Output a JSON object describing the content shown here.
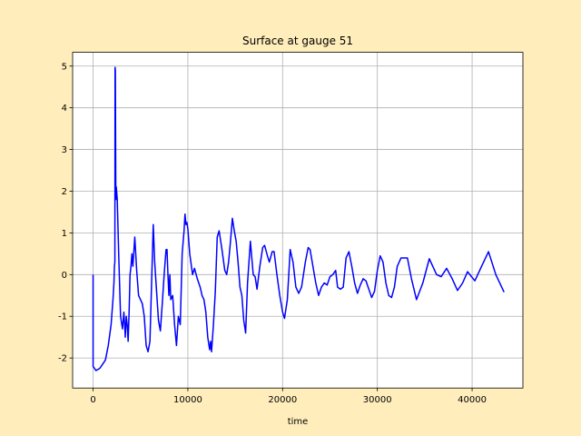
{
  "chart_data": {
    "type": "line",
    "title": "Surface at gauge 51",
    "xlabel": "time",
    "x": [
      0,
      0,
      300,
      700,
      1000,
      1300,
      1600,
      1900,
      2100,
      2200,
      2250,
      2300,
      2320,
      2350,
      2400,
      2450,
      2550,
      2700,
      2900,
      3100,
      3250,
      3400,
      3500,
      3600,
      3700,
      3800,
      3900,
      4000,
      4100,
      4200,
      4400,
      4600,
      4800,
      5000,
      5200,
      5400,
      5600,
      5800,
      6000,
      6200,
      6350,
      6500,
      6700,
      6900,
      7100,
      7300,
      7500,
      7700,
      7800,
      7900,
      8000,
      8100,
      8200,
      8400,
      8600,
      8800,
      9000,
      9200,
      9400,
      9600,
      9700,
      9800,
      9900,
      10000,
      10200,
      10500,
      10700,
      11000,
      11300,
      11500,
      11700,
      11900,
      12100,
      12300,
      12400,
      12500,
      12700,
      12900,
      13100,
      13300,
      13600,
      13900,
      14100,
      14300,
      14500,
      14700,
      14900,
      15100,
      15300,
      15500,
      15700,
      15900,
      16100,
      16300,
      16600,
      16900,
      17100,
      17300,
      17600,
      17900,
      18100,
      18400,
      18600,
      18900,
      19100,
      19400,
      19700,
      20000,
      20200,
      20500,
      20800,
      21100,
      21400,
      21700,
      22000,
      22400,
      22700,
      22900,
      23200,
      23500,
      23800,
      24100,
      24400,
      24700,
      25000,
      25300,
      25600,
      25800,
      26100,
      26400,
      26700,
      27000,
      27300,
      27600,
      27900,
      28200,
      28500,
      28800,
      29100,
      29400,
      29700,
      30000,
      30300,
      30600,
      30900,
      31200,
      31500,
      31800,
      32100,
      32500,
      33170,
      33600,
      34130,
      34800,
      35480,
      36250,
      36730,
      37310,
      37900,
      38460,
      39000,
      39520,
      40290,
      41000,
      41730,
      42500,
      43370
    ],
    "series": [
      {
        "name": "surface",
        "color": "#0000ff",
        "values": [
          0,
          -2.2,
          -2.3,
          -2.25,
          -2.15,
          -2.05,
          -1.7,
          -1.2,
          -0.6,
          -0.2,
          0.2,
          0.3,
          4.97,
          4.9,
          1.8,
          2.1,
          1.8,
          0.5,
          -1.0,
          -1.3,
          -0.9,
          -1.5,
          -1.0,
          -1.2,
          -1.6,
          -0.9,
          0.0,
          0.2,
          0.5,
          0.2,
          0.9,
          0.1,
          -0.5,
          -0.6,
          -0.7,
          -1.0,
          -1.7,
          -1.85,
          -1.6,
          0.0,
          1.2,
          0.3,
          -0.4,
          -1.1,
          -1.35,
          -0.7,
          0.0,
          0.6,
          0.6,
          0.0,
          -0.5,
          0.0,
          -0.6,
          -0.5,
          -1.2,
          -1.7,
          -1.0,
          -1.2,
          0.5,
          1.05,
          1.45,
          1.2,
          1.25,
          1.1,
          0.5,
          0.0,
          0.15,
          -0.1,
          -0.3,
          -0.5,
          -0.6,
          -0.9,
          -1.5,
          -1.8,
          -1.6,
          -1.85,
          -1.2,
          -0.4,
          0.9,
          1.05,
          0.6,
          0.1,
          0.0,
          0.3,
          0.8,
          1.35,
          1.05,
          0.8,
          0.3,
          -0.3,
          -0.5,
          -1.1,
          -1.4,
          -0.2,
          0.8,
          0.0,
          -0.05,
          -0.35,
          0.2,
          0.65,
          0.7,
          0.45,
          0.3,
          0.55,
          0.55,
          0.0,
          -0.5,
          -0.9,
          -1.05,
          -0.6,
          0.6,
          0.3,
          -0.3,
          -0.45,
          -0.3,
          0.3,
          0.65,
          0.6,
          0.2,
          -0.2,
          -0.5,
          -0.3,
          -0.2,
          -0.25,
          -0.05,
          0.0,
          0.1,
          -0.3,
          -0.35,
          -0.3,
          0.4,
          0.55,
          0.2,
          -0.2,
          -0.45,
          -0.25,
          -0.1,
          -0.15,
          -0.35,
          -0.55,
          -0.4,
          0.1,
          0.45,
          0.3,
          -0.2,
          -0.5,
          -0.55,
          -0.3,
          0.2,
          0.4,
          0.4,
          -0.1,
          -0.6,
          -0.2,
          0.38,
          0.0,
          -0.05,
          0.15,
          -0.1,
          -0.38,
          -0.2,
          0.07,
          -0.15,
          0.2,
          0.55,
          0.0,
          -0.42
        ]
      }
    ],
    "xlim": [
      -2160,
      45360
    ],
    "ylim": [
      -2.72,
      5.33
    ],
    "xticks": [
      0,
      10000,
      20000,
      30000,
      40000
    ],
    "yticks": [
      -2,
      -1,
      0,
      1,
      2,
      3,
      4,
      5
    ],
    "grid": true
  }
}
